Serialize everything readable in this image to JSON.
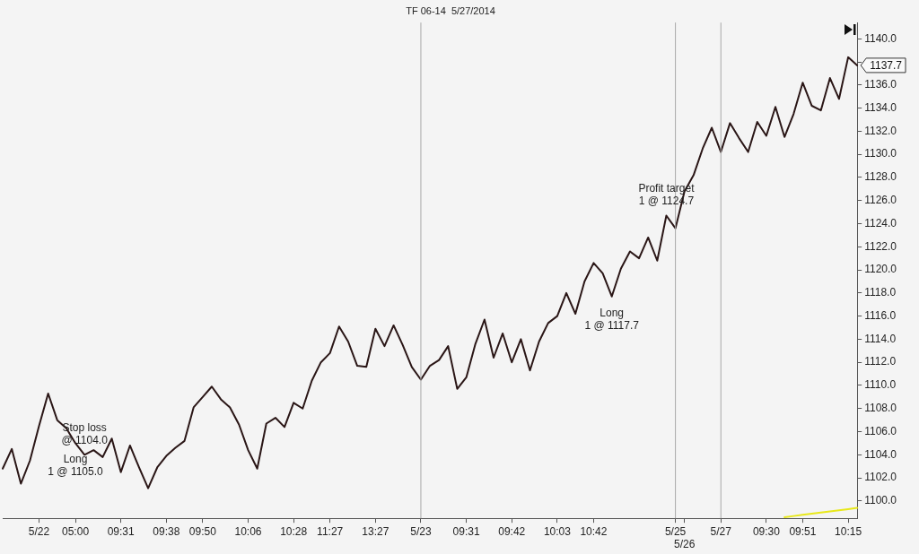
{
  "chart_data": {
    "type": "line",
    "title": "TF 06-14  5/27/2014",
    "categories": [
      null,
      null,
      null,
      null,
      "5/22",
      null,
      null,
      null,
      "05:00",
      null,
      null,
      null,
      null,
      "09:31",
      null,
      null,
      null,
      null,
      "09:38",
      null,
      null,
      null,
      "09:50",
      null,
      null,
      null,
      null,
      "10:06",
      null,
      null,
      null,
      null,
      "10:28",
      null,
      null,
      null,
      "11:27",
      null,
      null,
      null,
      null,
      "13:27",
      null,
      null,
      null,
      null,
      "5/23",
      null,
      null,
      null,
      null,
      "09:31",
      null,
      null,
      null,
      null,
      "09:42",
      null,
      null,
      null,
      null,
      "10:03",
      null,
      null,
      null,
      "10:42",
      null,
      null,
      null,
      null,
      null,
      null,
      null,
      null,
      "5/25",
      "5/26",
      null,
      null,
      null,
      "5/27",
      null,
      null,
      null,
      null,
      "09:30",
      null,
      null,
      null,
      "09:51",
      null,
      null,
      null,
      null,
      "10:15",
      null
    ],
    "ylim": [
      1098.5,
      1141.4
    ],
    "yticks": [
      {
        "value": 1100,
        "label": "1100.0"
      },
      {
        "value": 1102,
        "label": "1102.0"
      },
      {
        "value": 1104,
        "label": "1104.0"
      },
      {
        "value": 1106,
        "label": "1106.0"
      },
      {
        "value": 1108,
        "label": "1108.0"
      },
      {
        "value": 1110,
        "label": "1110.0"
      },
      {
        "value": 1112,
        "label": "1112.0"
      },
      {
        "value": 1114,
        "label": "1114.0"
      },
      {
        "value": 1116,
        "label": "1116.0"
      },
      {
        "value": 1118,
        "label": "1118.0"
      },
      {
        "value": 1120,
        "label": "1120.0"
      },
      {
        "value": 1122,
        "label": "1122.0"
      },
      {
        "value": 1124,
        "label": "1124.0"
      },
      {
        "value": 1126,
        "label": "1126.0"
      },
      {
        "value": 1128,
        "label": "1128.0"
      },
      {
        "value": 1130,
        "label": "1130.0"
      },
      {
        "value": 1132,
        "label": "1132.0"
      },
      {
        "value": 1134,
        "label": "1134.0"
      },
      {
        "value": 1136,
        "label": "1136.0"
      },
      {
        "value": 1138,
        "label": null
      },
      {
        "value": 1140,
        "label": "1140.0"
      }
    ],
    "legend": false,
    "marker": "none",
    "series": [
      {
        "color": "#2a1616",
        "values": [
          1102.8,
          1104.5,
          1101.5,
          1103.5,
          1106.5,
          1109.3,
          1107.0,
          1106.3,
          1105.0,
          1104.0,
          1104.4,
          1103.8,
          1105.4,
          1102.5,
          1104.8,
          1102.9,
          1101.1,
          1102.9,
          1103.9,
          1104.6,
          1105.2,
          1108.1,
          1109.0,
          1109.9,
          1108.8,
          1108.1,
          1106.6,
          1104.4,
          1102.8,
          1106.7,
          1107.2,
          1106.4,
          1108.5,
          1108.0,
          1110.4,
          1112.0,
          1112.8,
          1115.1,
          1113.8,
          1111.7,
          1111.6,
          1114.9,
          1113.4,
          1115.2,
          1113.5,
          1111.6,
          1110.5,
          1111.7,
          1112.2,
          1113.4,
          1109.7,
          1110.7,
          1113.6,
          1115.7,
          1112.4,
          1114.5,
          1112.0,
          1114.0,
          1111.3,
          1113.8,
          1115.4,
          1116.0,
          1118.0,
          1116.2,
          1119.0,
          1120.6,
          1119.7,
          1117.7,
          1120.1,
          1121.6,
          1121.0,
          1122.8,
          1120.8,
          1124.7,
          1123.6,
          1126.8,
          1128.2,
          1130.5,
          1132.3,
          1130.2,
          1132.7,
          1131.4,
          1130.2,
          1132.8,
          1131.6,
          1134.1,
          1131.5,
          1133.5,
          1136.2,
          1134.2,
          1133.8,
          1136.6,
          1134.8,
          1138.4,
          1137.7
        ]
      },
      {
        "color": "#e8e81a",
        "values": [
          null,
          null,
          null,
          null,
          null,
          null,
          null,
          null,
          null,
          null,
          null,
          null,
          null,
          null,
          null,
          null,
          null,
          null,
          null,
          null,
          null,
          null,
          null,
          null,
          null,
          null,
          null,
          null,
          null,
          null,
          null,
          null,
          null,
          null,
          null,
          null,
          null,
          null,
          null,
          null,
          null,
          null,
          null,
          null,
          null,
          null,
          null,
          null,
          null,
          null,
          null,
          null,
          null,
          null,
          null,
          null,
          null,
          null,
          null,
          null,
          null,
          null,
          null,
          null,
          null,
          null,
          null,
          null,
          null,
          null,
          null,
          null,
          null,
          null,
          null,
          null,
          null,
          null,
          null,
          null,
          null,
          null,
          null,
          null,
          null,
          null,
          1098.6,
          1098.7,
          1098.8,
          1098.9,
          1099.0,
          1099.1,
          1099.2,
          1099.3,
          1099.4
        ]
      }
    ],
    "ref_lines": [
      {
        "axis": "x",
        "value": "5/23",
        "color": "#a8a8a8"
      },
      {
        "axis": "x",
        "value": "5/25",
        "color": "#a8a8a8"
      },
      {
        "axis": "x",
        "value": "5/27",
        "color": "#a8a8a8"
      }
    ],
    "annotations": [
      {
        "text": "Long\n1 @ 1105.0",
        "y": 1105.0
      },
      {
        "text": "Stop loss\n@ 1104.0",
        "y": 1104.0
      },
      {
        "text": "Long\n1 @ 1117.7",
        "y": 1117.7
      },
      {
        "text": "Profit target\n1 @ 1124.7",
        "y": 1124.7
      },
      "1137.7"
    ]
  }
}
